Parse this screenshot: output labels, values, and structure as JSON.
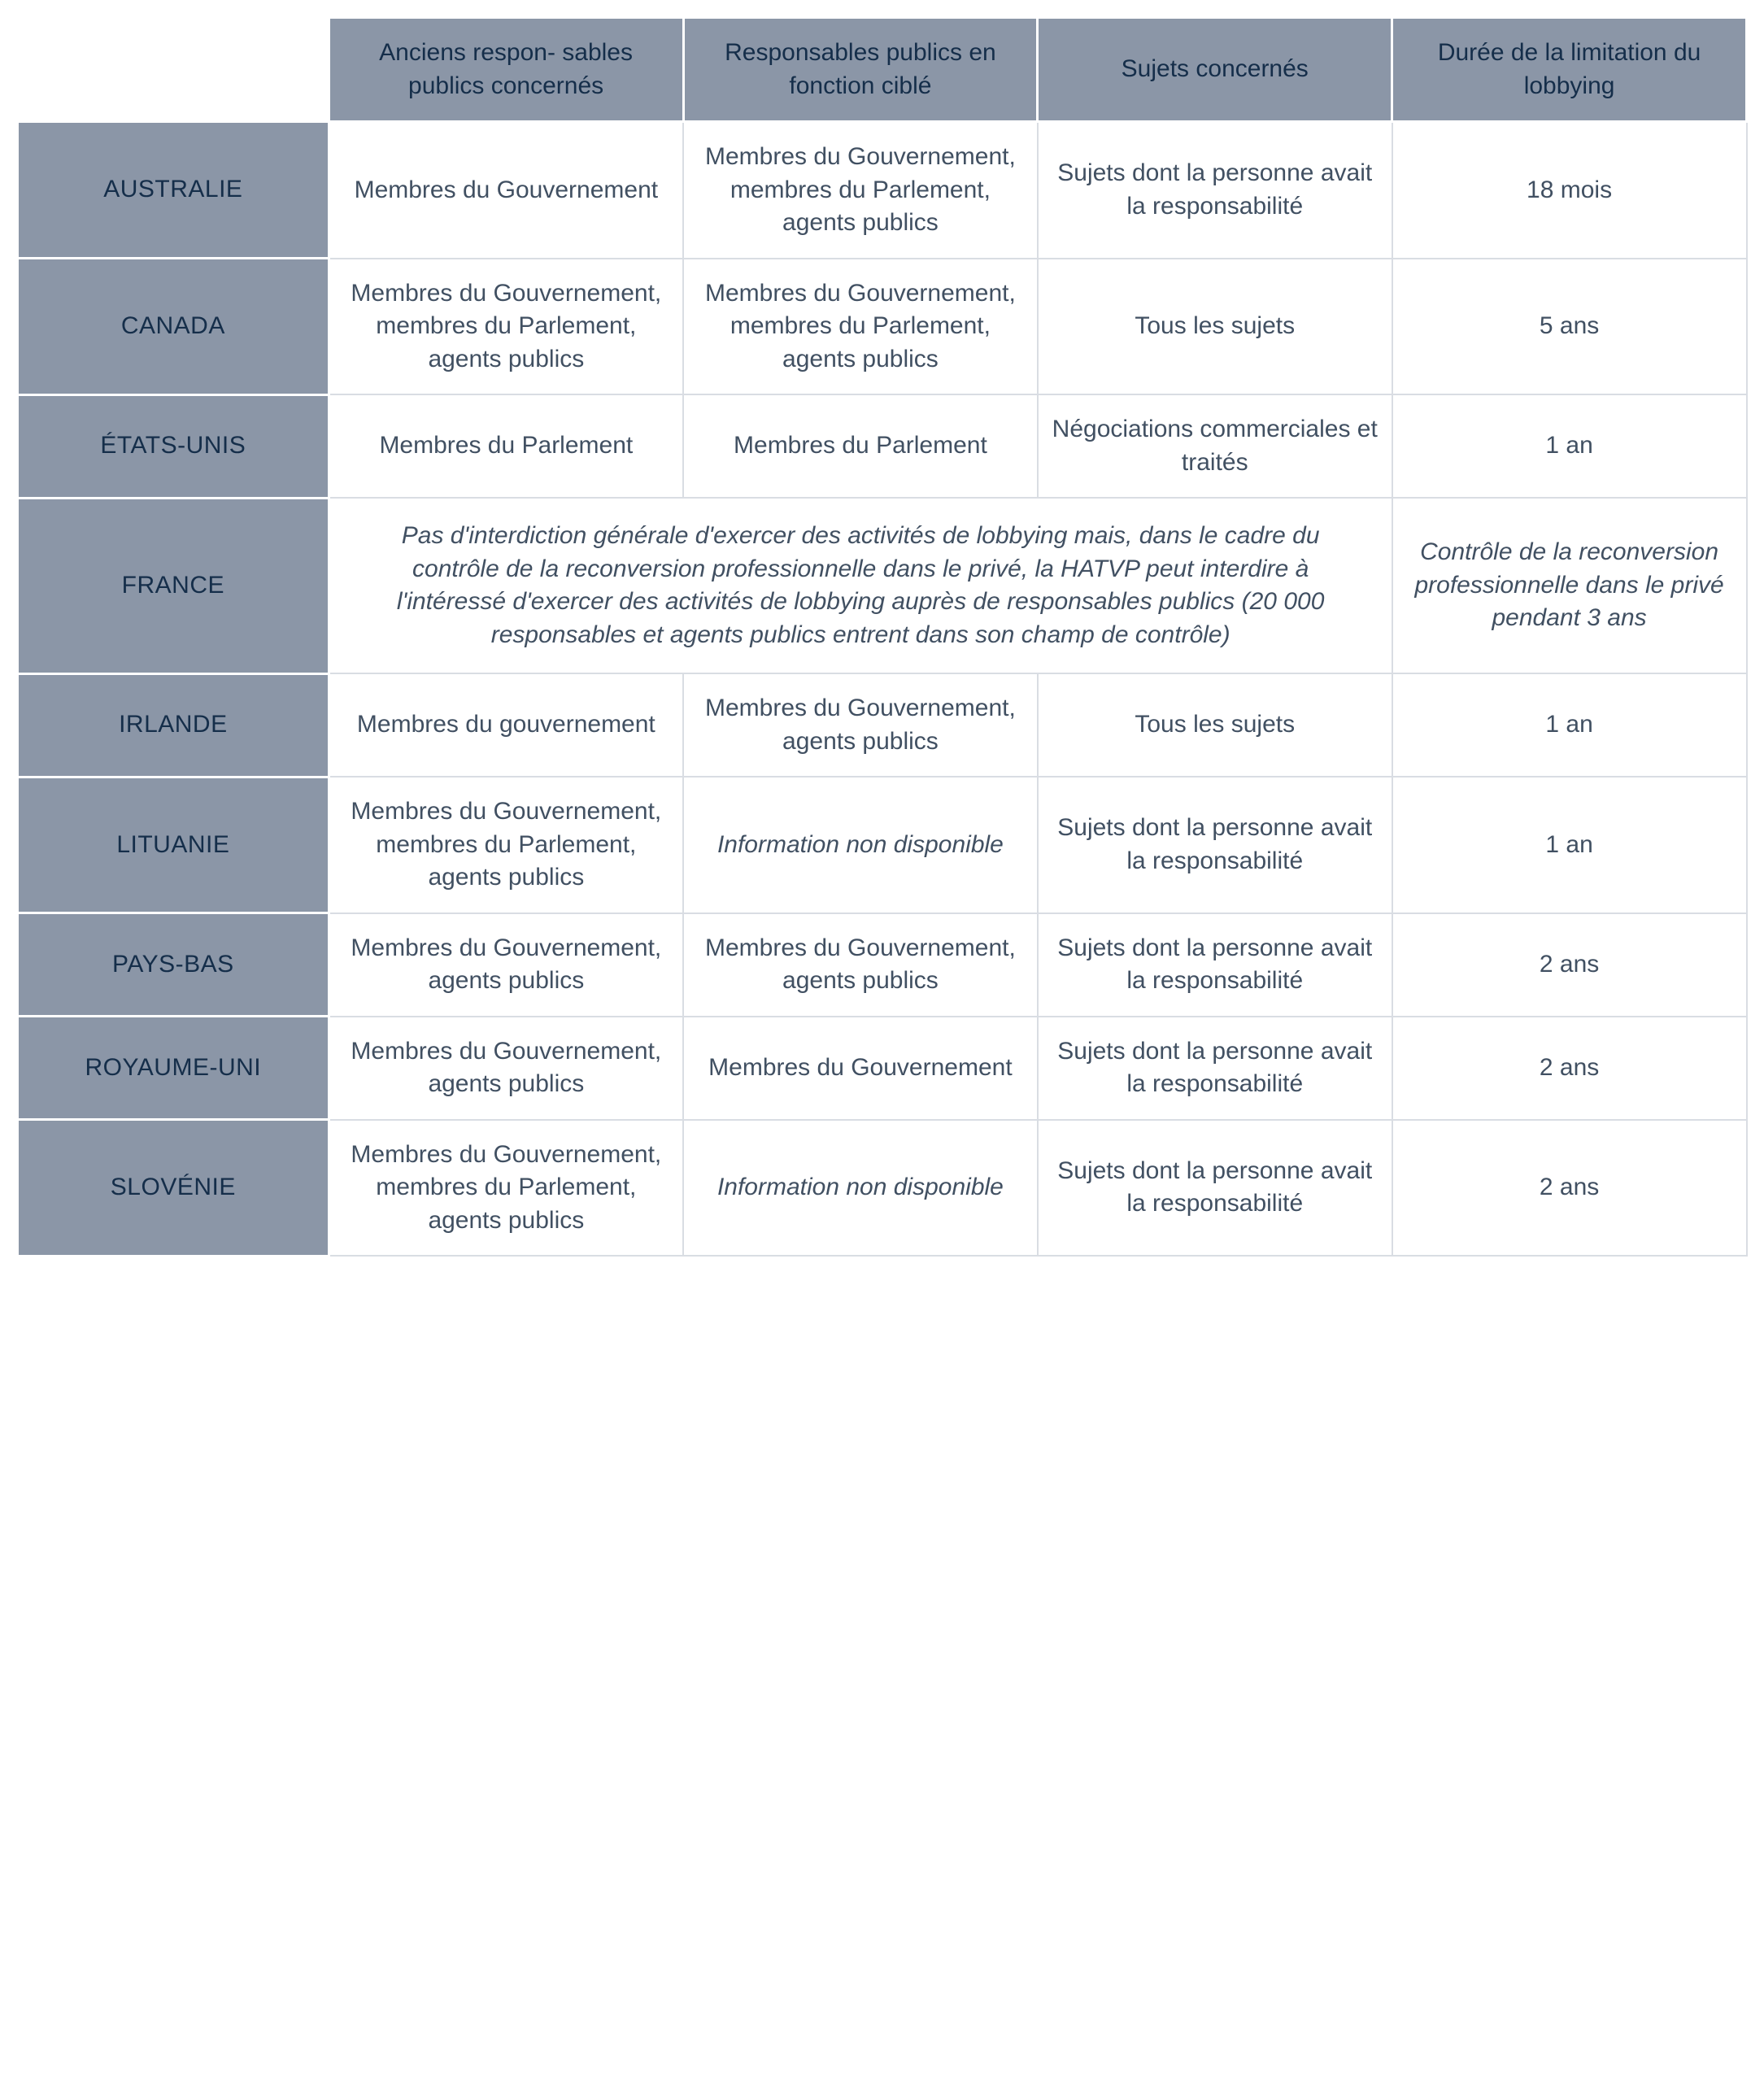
{
  "table": {
    "type": "table",
    "colors": {
      "header_bg": "#8b96a7",
      "header_text": "#152e4a",
      "cell_bg": "#ffffff",
      "cell_text": "#415062",
      "cell_border": "#d9dde3",
      "gap_border": "#ffffff"
    },
    "typography": {
      "font_size_pt": 22,
      "header_weight": "normal",
      "cell_weight": "normal",
      "italic_cells": true
    },
    "columns": [
      "Anciens respon-\nsables publics concernés",
      "Responsables publics en fonction ciblé",
      "Sujets concernés",
      "Durée de\nla limitation\ndu lobbying"
    ],
    "rows": [
      {
        "country": "AUSTRALIE",
        "cells": [
          "Membres du Gouvernement",
          "Membres du Gouvernement, membres du Parlement,\nagents publics",
          "Sujets dont\nla personne avait la responsabilité",
          "18 mois"
        ]
      },
      {
        "country": "CANADA",
        "cells": [
          "Membres du Gouvernement, membres du Parlement,\nagents publics",
          "Membres du Gouvernement, membres du Parlement,\nagents publics",
          "Tous les sujets",
          "5 ans"
        ]
      },
      {
        "country": "ÉTATS-UNIS",
        "cells": [
          "Membres du Parlement",
          "Membres du Parlement",
          "Négociations commerciales\net traités",
          "1 an"
        ]
      },
      {
        "country": "FRANCE",
        "merged_note": "Pas d'interdiction générale d'exercer des activités de lobbying mais, dans le cadre du contrôle de la reconversion professionnelle dans le privé, la HATVP peut interdire à l'intéressé d'exercer des activités de lobbying auprès de responsables publics (20 000 responsables et agents publics entrent dans son champ de contrôle)",
        "last_cell": "Contrôle de\nla reconversion professionnelle dans le privé pendant 3 ans",
        "last_cell_italic": true
      },
      {
        "country": "IRLANDE",
        "cells": [
          "Membres du gouvernement",
          "Membres du Gouvernement, agents publics",
          "Tous les sujets",
          "1 an"
        ]
      },
      {
        "country": "LITUANIE",
        "cells": [
          "Membres du Gouvernement, membres du Parlement,\nagents publics",
          "Information\nnon disponible",
          "Sujets dont\nla personne avait la responsabilité",
          "1 an"
        ],
        "italic_indices": [
          1
        ]
      },
      {
        "country": "PAYS-BAS",
        "cells": [
          "Membres du Gouvernement, agents publics",
          "Membres du Gouvernement, agents publics",
          "Sujets dont\nla personne avait la responsabilité",
          "2 ans"
        ]
      },
      {
        "country": "ROYAUME-UNI",
        "cells": [
          "Membres du Gouvernement, agents publics",
          "Membres du Gouvernement",
          "Sujets dont\nla personne avait la responsabilité",
          "2 ans"
        ]
      },
      {
        "country": "SLOVÉNIE",
        "cells": [
          "Membres du Gouvernement, membres du Parlement,\nagents publics",
          "Information\nnon disponible",
          "Sujets dont\nla personne avait la responsabilité",
          "2 ans"
        ],
        "italic_indices": [
          1
        ]
      }
    ]
  }
}
